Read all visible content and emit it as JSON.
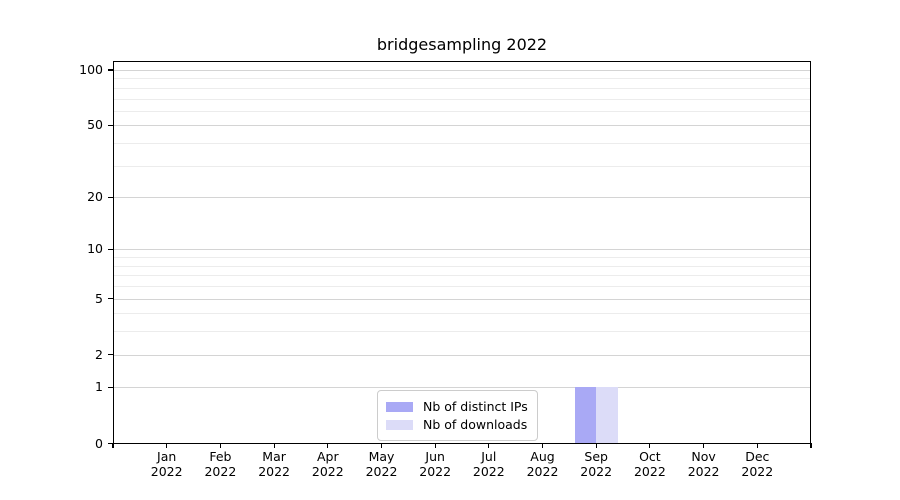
{
  "chart_data": {
    "type": "bar",
    "title": "bridgesampling 2022",
    "year_label": "2022",
    "categories": [
      "Jan",
      "Feb",
      "Mar",
      "Apr",
      "May",
      "Jun",
      "Jul",
      "Aug",
      "Sep",
      "Oct",
      "Nov",
      "Dec"
    ],
    "series": [
      {
        "name": "Nb of distinct IPs",
        "color": "#a9a9f5",
        "values": [
          0,
          0,
          0,
          0,
          0,
          0,
          0,
          0,
          1,
          0,
          0,
          0
        ]
      },
      {
        "name": "Nb of downloads",
        "color": "#dcdcf8",
        "values": [
          0,
          0,
          0,
          0,
          0,
          0,
          0,
          0,
          1,
          0,
          0,
          0
        ]
      }
    ],
    "xlabel": "",
    "ylabel": "",
    "yscale": "log1p",
    "ylim": [
      0,
      110
    ],
    "yticks": [
      0,
      1,
      2,
      5,
      10,
      20,
      50,
      100
    ],
    "yticks_minor": [
      3,
      4,
      6,
      7,
      8,
      9,
      30,
      40,
      60,
      70,
      80,
      90
    ],
    "grid": "horizontal",
    "legend_position": "lower-center-left",
    "colors": {
      "grid_major": "#d4d4d4",
      "grid_minor": "#ececec",
      "spine": "#000000",
      "text": "#000000",
      "legend_border": "#cccccc",
      "background": "#ffffff"
    }
  }
}
